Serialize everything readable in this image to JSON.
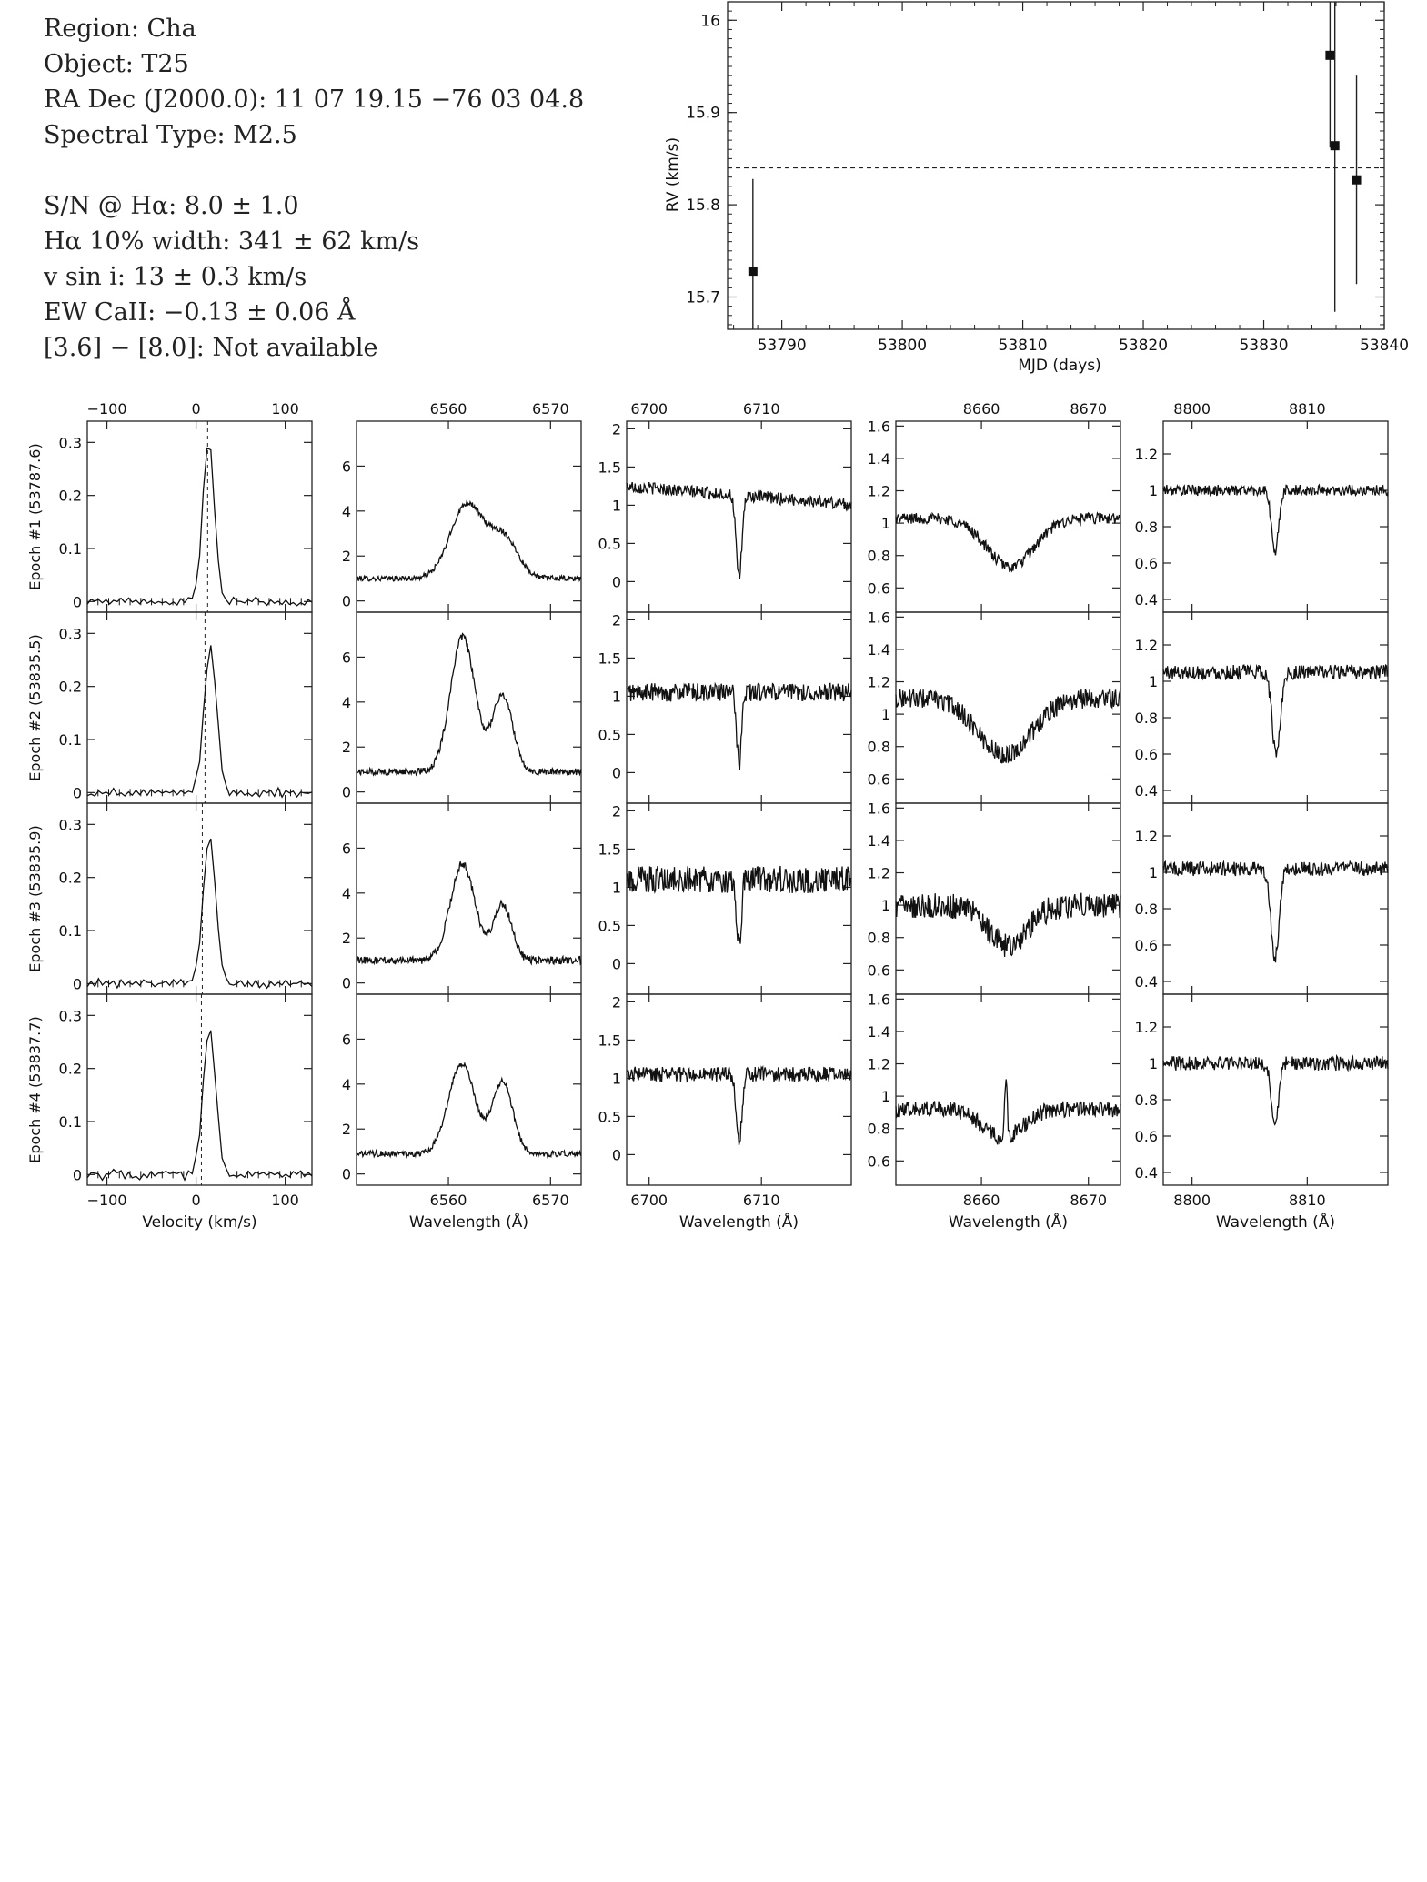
{
  "header": {
    "lines": [
      "Region: Cha",
      "Object: T25",
      "RA Dec (J2000.0): 11 07 19.15 −76 03 04.8",
      "Spectral Type: M2.5",
      "",
      "S/N @ Hα: 8.0 ± 1.0",
      "Hα 10% width: 341 ± 62 km/s",
      "v sin i: 13 ± 0.3 km/s",
      "EW CaII: −0.13 ± 0.06 Å",
      "[3.6] − [8.0]: Not available"
    ]
  },
  "chart_data": [
    {
      "id": "rv",
      "type": "scatter",
      "xlabel": "MJD (days)",
      "ylabel": "RV (km/s)",
      "xlim": [
        53785.5,
        53840
      ],
      "ylim": [
        15.665,
        16.02
      ],
      "xticks": [
        53790,
        53800,
        53810,
        53820,
        53830,
        53840
      ],
      "yticks": [
        15.7,
        15.8,
        15.9,
        16
      ],
      "mean_line": 15.84,
      "points": [
        {
          "x": 53787.6,
          "y": 15.728,
          "err": 0.1
        },
        {
          "x": 53835.5,
          "y": 15.962,
          "err": 0.1
        },
        {
          "x": 53835.9,
          "y": 15.864,
          "err": 0.18
        },
        {
          "x": 53837.7,
          "y": 15.827,
          "err": 0.113
        }
      ]
    },
    {
      "id": "spectra",
      "type": "line",
      "row_labels": [
        "Epoch #1 (53787.6)",
        "Epoch #2 (53835.5)",
        "Epoch #3 (53835.9)",
        "Epoch #4 (53837.7)"
      ],
      "columns": [
        {
          "name": "velocity",
          "xlabel": "Velocity (km/s)",
          "xlim": [
            -122,
            130
          ],
          "ylim": [
            -0.02,
            0.34
          ],
          "xticks": [
            -100,
            0,
            100
          ],
          "yticks": [
            0,
            0.1,
            0.2,
            0.3
          ],
          "dashed_x": [
            13,
            10,
            7,
            6
          ],
          "profiles": [
            {
              "base": 0,
              "noise": 0.004,
              "wiggle": 0.006,
              "center": 14,
              "width": 10,
              "peak": 0.305
            },
            {
              "base": 0,
              "noise": 0.004,
              "wiggle": 0.007,
              "center": 16,
              "width": 11,
              "peak": 0.27
            },
            {
              "base": 0,
              "noise": 0.004,
              "wiggle": 0.007,
              "center": 15,
              "width": 11,
              "peak": 0.275
            },
            {
              "base": 0,
              "noise": 0.004,
              "wiggle": 0.007,
              "center": 15,
              "width": 11,
              "peak": 0.27
            }
          ]
        },
        {
          "name": "halpha",
          "xlabel": "Wavelength (Å)",
          "xlim": [
            6551,
            6573
          ],
          "ylim": [
            -0.5,
            8
          ],
          "xticks": [
            6560,
            6570
          ],
          "yticks": [
            0,
            2,
            4,
            6
          ],
          "profiles": [
            {
              "base": 1.0,
              "noise": 0.12,
              "lines": [
                [
                  6561.8,
                  1.6,
                  3.3
                ],
                [
                  6565.4,
                  1.4,
                  1.8
                ]
              ]
            },
            {
              "base": 0.9,
              "noise": 0.15,
              "lines": [
                [
                  6561.4,
                  1.2,
                  6.0
                ],
                [
                  6565.3,
                  1.0,
                  3.4
                ]
              ]
            },
            {
              "base": 1.0,
              "noise": 0.18,
              "lines": [
                [
                  6561.4,
                  1.2,
                  4.3
                ],
                [
                  6565.3,
                  0.9,
                  2.5
                ]
              ]
            },
            {
              "base": 0.9,
              "noise": 0.13,
              "lines": [
                [
                  6561.3,
                  1.3,
                  4.0
                ],
                [
                  6565.3,
                  1.0,
                  3.2
                ]
              ]
            }
          ]
        },
        {
          "name": "li",
          "xlabel": "Wavelength (Å)",
          "xlim": [
            6698,
            6718
          ],
          "ylim": [
            -0.4,
            2.1
          ],
          "xticks": [
            6700,
            6710
          ],
          "yticks": [
            0,
            0.5,
            1,
            1.5,
            2
          ],
          "profiles": [
            {
              "base": 1.25,
              "slope": -0.012,
              "noise": 0.08,
              "lines": [
                [
                  6708.0,
                  0.25,
                  -1.1
                ]
              ]
            },
            {
              "base": 1.05,
              "noise": 0.12,
              "lines": [
                [
                  6708.0,
                  0.2,
                  -0.95
                ]
              ]
            },
            {
              "base": 1.1,
              "noise": 0.18,
              "lines": [
                [
                  6708.0,
                  0.2,
                  -0.9
                ]
              ]
            },
            {
              "base": 1.05,
              "noise": 0.1,
              "lines": [
                [
                  6708.0,
                  0.25,
                  -0.9
                ]
              ]
            }
          ]
        },
        {
          "name": "ca-8662",
          "xlabel": "Wavelength (Å)",
          "xlim": [
            8652,
            8673
          ],
          "ylim": [
            0.45,
            1.63
          ],
          "xticks": [
            8660,
            8670
          ],
          "yticks": [
            0.6,
            0.8,
            1,
            1.2,
            1.4,
            1.6
          ],
          "profiles": [
            {
              "base": 1.03,
              "noise": 0.035,
              "lines": [
                [
                  8662.7,
                  2.2,
                  -0.3
                ]
              ]
            },
            {
              "base": 1.1,
              "noise": 0.06,
              "lines": [
                [
                  8662.2,
                  2.5,
                  -0.35
                ]
              ]
            },
            {
              "base": 1.0,
              "noise": 0.08,
              "lines": [
                [
                  8662.5,
                  1.8,
                  -0.25
                ]
              ]
            },
            {
              "base": 0.92,
              "noise": 0.05,
              "lines": [
                [
                  8662.0,
                  1.8,
                  -0.18
                ],
                [
                  8662.3,
                  0.12,
                  0.35
                ]
              ]
            }
          ]
        },
        {
          "name": "fe-8807",
          "xlabel": "Wavelength (Å)",
          "xlim": [
            8797.5,
            8817
          ],
          "ylim": [
            0.33,
            1.38
          ],
          "xticks": [
            8800,
            8810
          ],
          "yticks": [
            0.4,
            0.6,
            0.8,
            1,
            1.2
          ],
          "profiles": [
            {
              "base": 1.0,
              "noise": 0.03,
              "lines": [
                [
                  8807.2,
                  0.3,
                  -0.35
                ]
              ]
            },
            {
              "base": 1.05,
              "noise": 0.04,
              "lines": [
                [
                  8807.3,
                  0.35,
                  -0.45
                ]
              ]
            },
            {
              "base": 1.02,
              "noise": 0.04,
              "lines": [
                [
                  8807.2,
                  0.35,
                  -0.5
                ]
              ]
            },
            {
              "base": 1.0,
              "noise": 0.04,
              "lines": [
                [
                  8807.2,
                  0.3,
                  -0.35
                ]
              ]
            }
          ]
        }
      ]
    }
  ]
}
